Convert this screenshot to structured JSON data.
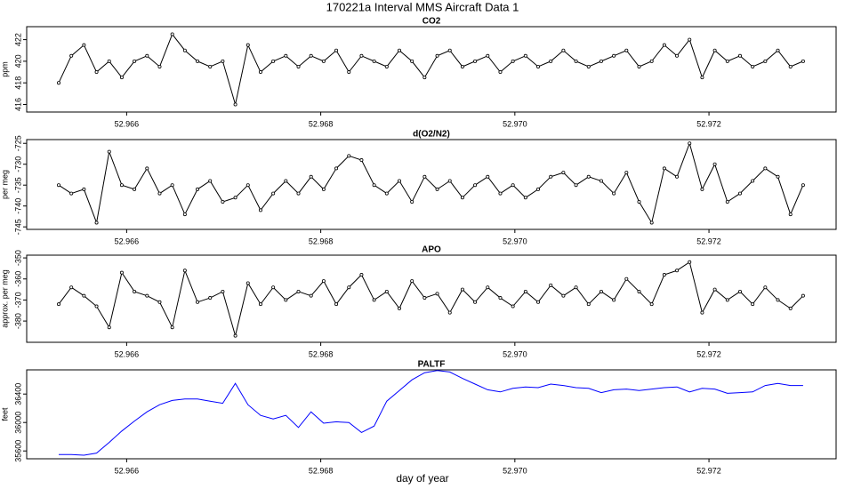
{
  "title": "170221a   Interval MMS Aircraft Data 1",
  "xlabel": "day of year",
  "chart_data": [
    {
      "type": "line",
      "title": "CO2",
      "ylabel": "ppm",
      "color": "#000000",
      "markers": true,
      "x": [
        52.9653,
        52.96543,
        52.96556,
        52.96569,
        52.96582,
        52.96595,
        52.96608,
        52.96621,
        52.96634,
        52.96647,
        52.9666,
        52.96673,
        52.96686,
        52.96699,
        52.96712,
        52.96725,
        52.96738,
        52.96751,
        52.96764,
        52.96777,
        52.9679,
        52.96803,
        52.96816,
        52.96829,
        52.96842,
        52.96855,
        52.96868,
        52.96881,
        52.96894,
        52.96907,
        52.9692,
        52.96933,
        52.96946,
        52.96959,
        52.96972,
        52.96985,
        52.96998,
        52.97011,
        52.97024,
        52.97037,
        52.9705,
        52.97063,
        52.97076,
        52.97089,
        52.97102,
        52.97115,
        52.97128,
        52.97141,
        52.97154,
        52.97167,
        52.9718,
        52.97193,
        52.97206,
        52.97219,
        52.97232,
        52.97245,
        52.97258,
        52.97271,
        52.97284,
        52.97297
      ],
      "values": [
        418,
        420.5,
        421.5,
        419,
        420,
        418.5,
        420,
        420.5,
        419.5,
        422.5,
        421,
        420,
        419.5,
        420,
        416,
        421.5,
        419,
        420,
        420.5,
        419.5,
        420.5,
        420,
        421,
        419,
        420.5,
        420,
        419.5,
        421,
        420,
        418.5,
        420.5,
        421,
        419.5,
        420,
        420.5,
        419,
        420,
        420.5,
        419.5,
        420,
        421,
        420,
        419.5,
        420,
        420.5,
        421,
        419.5,
        420,
        421.5,
        420.5,
        422,
        418.5,
        421,
        420,
        420.5,
        419.5,
        420,
        421,
        419.5,
        420
      ],
      "xlim": [
        52.96497,
        52.97331
      ],
      "xticks": [
        52.966,
        52.968,
        {
          "value": 52.97,
          "label": "52.970"
        },
        52.972
      ],
      "ylim": [
        415.3,
        423.2
      ],
      "yticks": [
        416,
        418,
        420,
        422
      ]
    },
    {
      "type": "line",
      "title": "d(O2/N2)",
      "ylabel": "per meg",
      "color": "#000000",
      "markers": true,
      "x": [
        52.9653,
        52.96543,
        52.96556,
        52.96569,
        52.96582,
        52.96595,
        52.96608,
        52.96621,
        52.96634,
        52.96647,
        52.9666,
        52.96673,
        52.96686,
        52.96699,
        52.96712,
        52.96725,
        52.96738,
        52.96751,
        52.96764,
        52.96777,
        52.9679,
        52.96803,
        52.96816,
        52.96829,
        52.96842,
        52.96855,
        52.96868,
        52.96881,
        52.96894,
        52.96907,
        52.9692,
        52.96933,
        52.96946,
        52.96959,
        52.96972,
        52.96985,
        52.96998,
        52.97011,
        52.97024,
        52.97037,
        52.9705,
        52.97063,
        52.97076,
        52.97089,
        52.97102,
        52.97115,
        52.97128,
        52.97141,
        52.97154,
        52.97167,
        52.9718,
        52.97193,
        52.97206,
        52.97219,
        52.97232,
        52.97245,
        52.97258,
        52.97271,
        52.97284,
        52.97297
      ],
      "values": [
        -735,
        -737,
        -736,
        -744,
        -727,
        -735,
        -736,
        -731,
        -737,
        -735,
        -742,
        -736,
        -734,
        -739,
        -738,
        -735,
        -741,
        -737,
        -734,
        -737,
        -733,
        -736,
        -731,
        -728,
        -729,
        -735,
        -737,
        -734,
        -739,
        -733,
        -736,
        -734,
        -738,
        -735,
        -733,
        -737,
        -735,
        -738,
        -736,
        -733,
        -732,
        -735,
        -733,
        -734,
        -737,
        -732,
        -739,
        -744,
        -731,
        -733,
        -725,
        -736,
        -730,
        -739,
        -737,
        -734,
        -731,
        -733,
        -742,
        -735
      ],
      "xlim": [
        52.96497,
        52.97331
      ],
      "xticks": [
        52.966,
        52.968,
        {
          "value": 52.97,
          "label": "52.970"
        },
        52.972
      ],
      "ylim": [
        -745.6,
        -724.1
      ],
      "yticks": [
        -745,
        -740,
        -735,
        -730,
        -725
      ]
    },
    {
      "type": "line",
      "title": "APO",
      "ylabel": "approx. per meg",
      "color": "#000000",
      "markers": true,
      "x": [
        52.9653,
        52.96543,
        52.96556,
        52.96569,
        52.96582,
        52.96595,
        52.96608,
        52.96621,
        52.96634,
        52.96647,
        52.9666,
        52.96673,
        52.96686,
        52.96699,
        52.96712,
        52.96725,
        52.96738,
        52.96751,
        52.96764,
        52.96777,
        52.9679,
        52.96803,
        52.96816,
        52.96829,
        52.96842,
        52.96855,
        52.96868,
        52.96881,
        52.96894,
        52.96907,
        52.9692,
        52.96933,
        52.96946,
        52.96959,
        52.96972,
        52.96985,
        52.96998,
        52.97011,
        52.97024,
        52.97037,
        52.9705,
        52.97063,
        52.97076,
        52.97089,
        52.97102,
        52.97115,
        52.97128,
        52.97141,
        52.97154,
        52.97167,
        52.9718,
        52.97193,
        52.97206,
        52.97219,
        52.97232,
        52.97245,
        52.97258,
        52.97271,
        52.97284,
        52.97297
      ],
      "values": [
        -372,
        -364,
        -368,
        -373,
        -383,
        -357,
        -366,
        -368,
        -371,
        -383,
        -356,
        -371,
        -369,
        -366,
        -387,
        -362,
        -372,
        -364,
        -370,
        -366,
        -368,
        -361,
        -372,
        -364,
        -358,
        -370,
        -366,
        -374,
        -361,
        -369,
        -367,
        -376,
        -365,
        -371,
        -364,
        -369,
        -373,
        -366,
        -371,
        -363,
        -368,
        -364,
        -372,
        -366,
        -370,
        -360,
        -366,
        -372,
        -358,
        -356,
        -352,
        -376,
        -365,
        -370,
        -366,
        -372,
        -364,
        -370,
        -374,
        -368
      ],
      "xlim": [
        52.96497,
        52.97331
      ],
      "xticks": [
        52.966,
        52.968,
        {
          "value": 52.97,
          "label": "52.970"
        },
        52.972
      ],
      "ylim": [
        -390.1,
        -348.7
      ],
      "yticks": [
        -380,
        -370,
        -360,
        -350
      ]
    },
    {
      "type": "line",
      "title": "PALTF",
      "ylabel": "feet",
      "color": "#0000ff",
      "markers": false,
      "x": [
        52.9653,
        52.96543,
        52.96556,
        52.96569,
        52.96582,
        52.96595,
        52.96608,
        52.96621,
        52.96634,
        52.96647,
        52.9666,
        52.96673,
        52.96686,
        52.96699,
        52.96712,
        52.96725,
        52.96738,
        52.96751,
        52.96764,
        52.96777,
        52.9679,
        52.96803,
        52.96816,
        52.96829,
        52.96842,
        52.96855,
        52.96868,
        52.96881,
        52.96894,
        52.96907,
        52.9692,
        52.96933,
        52.96946,
        52.96959,
        52.96972,
        52.96985,
        52.96998,
        52.97011,
        52.97024,
        52.97037,
        52.9705,
        52.97063,
        52.97076,
        52.97089,
        52.97102,
        52.97115,
        52.97128,
        52.97141,
        52.97154,
        52.97167,
        52.9718,
        52.97193,
        52.97206,
        52.97219,
        52.97232,
        52.97245,
        52.97258,
        52.97271,
        52.97284,
        52.97297
      ],
      "values": [
        35550,
        35550,
        35540,
        35570,
        35720,
        35880,
        36020,
        36150,
        36250,
        36310,
        36330,
        36330,
        36300,
        36270,
        36550,
        36250,
        36100,
        36050,
        36100,
        35930,
        36150,
        35990,
        36010,
        36000,
        35860,
        35950,
        36300,
        36450,
        36600,
        36700,
        36730,
        36710,
        36620,
        36540,
        36460,
        36430,
        36480,
        36500,
        36490,
        36540,
        36520,
        36490,
        36480,
        36420,
        36460,
        36470,
        36450,
        36470,
        36490,
        36500,
        36430,
        36480,
        36470,
        36410,
        36420,
        36430,
        36520,
        36550,
        36520,
        36520
      ],
      "xlim": [
        52.96497,
        52.97331
      ],
      "xticks": [
        52.966,
        52.968,
        {
          "value": 52.97,
          "label": "52.970"
        },
        52.972
      ],
      "ylim": [
        35490,
        36740
      ],
      "yticks": [
        35600,
        36000,
        36400
      ]
    }
  ]
}
